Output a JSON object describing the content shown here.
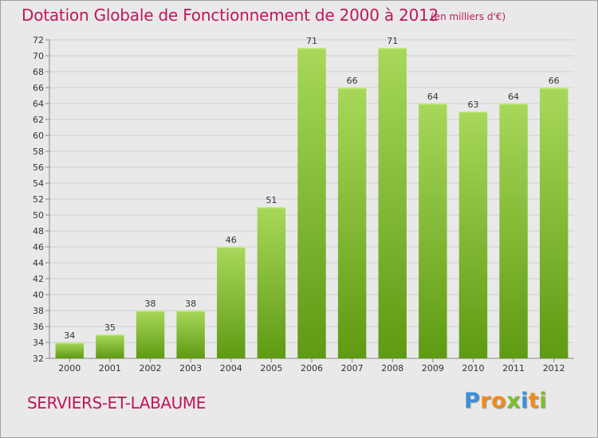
{
  "header": {
    "title": "Dotation Globale de Fonctionnement de 2000 à 2012",
    "unit": "(en milliers d'€)"
  },
  "footer": {
    "commune": "SERVIERS-ET-LABAUME"
  },
  "logo": {
    "text": "Proxiti",
    "letters": [
      {
        "ch": "P",
        "color": "#3a8fd8"
      },
      {
        "ch": "r",
        "color": "#f08a1c"
      },
      {
        "ch": "o",
        "color": "#f08a1c"
      },
      {
        "ch": "x",
        "color": "#7bbd2a"
      },
      {
        "ch": "i",
        "color": "#3a8fd8"
      },
      {
        "ch": "t",
        "color": "#f08a1c"
      },
      {
        "ch": "i",
        "color": "#7bbd2a"
      }
    ]
  },
  "colors": {
    "title": "#c0165a",
    "bar_top": "#a8d85a",
    "bar_bottom": "#5e9a12",
    "grid": "#cfcfcf",
    "axis_text": "#333333",
    "background": "#e9e9e9"
  },
  "chart_data": {
    "type": "bar",
    "title": "Dotation Globale de Fonctionnement de 2000 à 2012",
    "subtitle": "(en milliers d'€)",
    "xlabel": "",
    "ylabel": "",
    "categories": [
      "2000",
      "2001",
      "2002",
      "2003",
      "2004",
      "2005",
      "2006",
      "2007",
      "2008",
      "2009",
      "2010",
      "2011",
      "2012"
    ],
    "values": [
      34,
      35,
      38,
      38,
      46,
      51,
      71,
      66,
      71,
      64,
      63,
      64,
      66
    ],
    "ylim": [
      32,
      72
    ],
    "yticks": [
      32,
      34,
      36,
      38,
      40,
      42,
      44,
      46,
      48,
      50,
      52,
      54,
      56,
      58,
      60,
      62,
      64,
      66,
      68,
      70,
      72
    ],
    "grid": true,
    "data_labels": true
  }
}
